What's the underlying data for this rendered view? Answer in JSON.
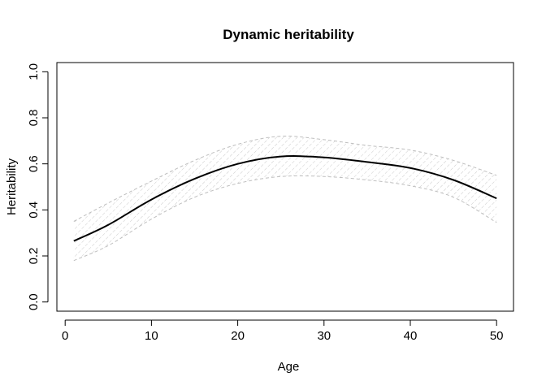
{
  "chart_data": {
    "type": "line",
    "title": "Dynamic heritability",
    "xlabel": "Age",
    "ylabel": "Heritability",
    "xlim": [
      -0.96,
      51.96
    ],
    "ylim": [
      -0.04,
      1.04
    ],
    "x_ticks": [
      0,
      10,
      20,
      30,
      40,
      50
    ],
    "y_ticks": [
      0.0,
      0.2,
      0.4,
      0.6,
      0.8,
      1.0
    ],
    "x_tick_labels": [
      "0",
      "10",
      "20",
      "30",
      "40",
      "50"
    ],
    "y_tick_labels": [
      "0.0",
      "0.2",
      "0.4",
      "0.6",
      "0.8",
      "1.0"
    ],
    "grid": false,
    "colors": {
      "line": "#000000",
      "band_border": "#bebebe",
      "band_hatch": "#bebebe"
    },
    "series": [
      {
        "x": [
          1,
          5,
          10,
          15,
          20,
          25,
          30,
          35,
          40,
          45,
          50
        ],
        "values": [
          0.265,
          0.335,
          0.445,
          0.535,
          0.6,
          0.632,
          0.628,
          0.608,
          0.582,
          0.53,
          0.45
        ]
      }
    ],
    "band": {
      "x": [
        1,
        5,
        10,
        15,
        20,
        25,
        30,
        35,
        40,
        45,
        50
      ],
      "upper": [
        0.35,
        0.43,
        0.525,
        0.615,
        0.685,
        0.72,
        0.705,
        0.68,
        0.66,
        0.615,
        0.55
      ],
      "lower": [
        0.18,
        0.245,
        0.36,
        0.455,
        0.515,
        0.545,
        0.545,
        0.53,
        0.505,
        0.455,
        0.345
      ]
    }
  }
}
